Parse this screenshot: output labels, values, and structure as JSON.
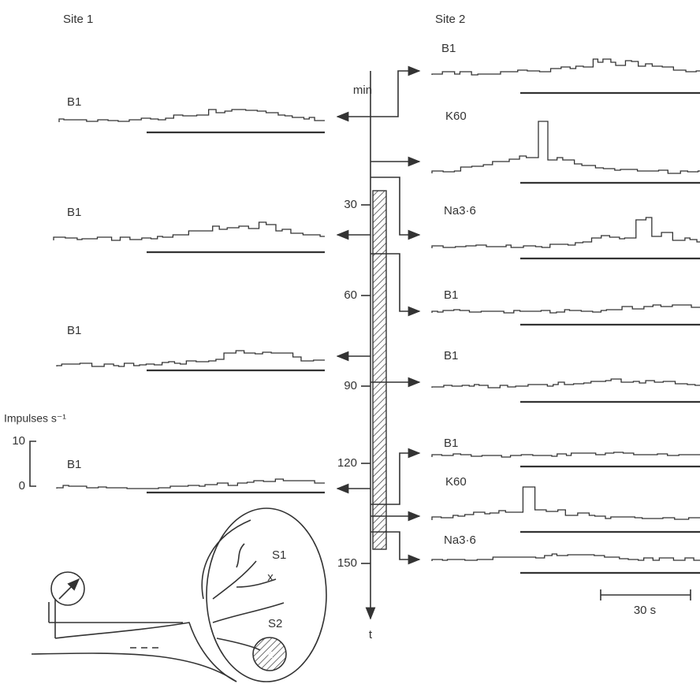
{
  "site1": {
    "label": "Site 1",
    "traces": [
      {
        "label": "B1"
      },
      {
        "label": "B1"
      },
      {
        "label": "B1"
      },
      {
        "label": "B1"
      }
    ]
  },
  "site2": {
    "label": "Site 2",
    "traces": [
      {
        "label": "B1"
      },
      {
        "label": "K60"
      },
      {
        "label": "Na3·6"
      },
      {
        "label": "B1"
      },
      {
        "label": "B1"
      },
      {
        "label": "B1"
      },
      {
        "label": "K60"
      },
      {
        "label": "Na3·6"
      }
    ]
  },
  "time_axis": {
    "unit": "min",
    "ticks": [
      30,
      60,
      90,
      120,
      150
    ],
    "label": "t"
  },
  "rate_scale": {
    "label": "Impulses s⁻¹",
    "ticks": [
      10,
      0
    ]
  },
  "time_scale": {
    "label": "30 s"
  },
  "schematic": {
    "labels": [
      "S1",
      "x",
      "S2",
      "x"
    ]
  }
}
